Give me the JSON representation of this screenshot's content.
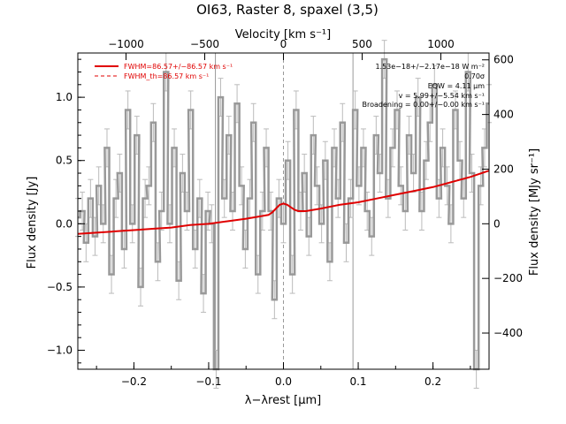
{
  "chart_data": {
    "type": "line",
    "title": "OI63, Raster 8, spaxel (3,5)",
    "xlabel": "λ−λrest [μm]",
    "ylabel": "Flux density [Jy]",
    "top_xlabel": "Velocity [km s⁻¹]",
    "right_ylabel": "Flux density [MJy sr⁻¹]",
    "xlim": [
      -0.275,
      0.275
    ],
    "ylim": [
      -1.15,
      1.35
    ],
    "x_ticks": [
      -0.2,
      -0.1,
      0.0,
      0.1,
      0.2
    ],
    "y_ticks": [
      -1.0,
      -0.5,
      0.0,
      0.5,
      1.0
    ],
    "top_ticks": [
      -1000,
      -500,
      0,
      500,
      1000
    ],
    "right_ticks": [
      -400,
      -200,
      0,
      200,
      400,
      600
    ],
    "x_tick_labels": [
      "−0.2",
      "−0.1",
      "0.0",
      "0.1",
      "0.2"
    ],
    "y_tick_labels": [
      "−1.0",
      "−0.5",
      "0.0",
      "0.5",
      "1.0"
    ],
    "top_tick_labels": [
      "−1000",
      "−500",
      "0",
      "500",
      "1000"
    ],
    "right_tick_labels": [
      "−400",
      "−200",
      "0",
      "200",
      "400",
      "600"
    ],
    "velocity_per_um": 4750,
    "mjysr_per_jy": 463,
    "vlines": [
      -0.091,
      0.0,
      0.093
    ],
    "grid": false,
    "legend": {
      "placement": "top-left",
      "items": [
        {
          "label": "FWHM=86.57+/−86.57 km s⁻¹",
          "style": "solid",
          "color": "#e00000"
        },
        {
          "label": "FWHM_th=86.57 km s⁻¹",
          "style": "dashed",
          "color": "#e00000"
        }
      ]
    },
    "annotations": [
      "1.53e−18+/−2.17e−18 W m⁻²",
      "0.70σ",
      "EQW = 4.11 μm",
      "v = 5.99+/−5.54 km s⁻¹",
      "Broadening = 0.00+/−0.00 km s⁻¹"
    ],
    "series": [
      {
        "name": "data",
        "color": "#999999",
        "drawstyle": "steps-mid",
        "x": [
          -0.275,
          -0.269,
          -0.264,
          -0.258,
          -0.252,
          -0.247,
          -0.241,
          -0.236,
          -0.23,
          -0.224,
          -0.219,
          -0.213,
          -0.208,
          -0.202,
          -0.196,
          -0.191,
          -0.185,
          -0.18,
          -0.174,
          -0.168,
          -0.163,
          -0.157,
          -0.152,
          -0.146,
          -0.14,
          -0.135,
          -0.129,
          -0.124,
          -0.118,
          -0.112,
          -0.107,
          -0.101,
          -0.096,
          -0.09,
          -0.084,
          -0.079,
          -0.073,
          -0.068,
          -0.062,
          -0.056,
          -0.051,
          -0.045,
          -0.04,
          -0.034,
          -0.028,
          -0.023,
          -0.017,
          -0.012,
          -0.006,
          0.0,
          0.006,
          0.012,
          0.017,
          0.023,
          0.028,
          0.034,
          0.04,
          0.045,
          0.051,
          0.056,
          0.062,
          0.068,
          0.073,
          0.079,
          0.084,
          0.09,
          0.096,
          0.101,
          0.107,
          0.112,
          0.118,
          0.124,
          0.129,
          0.135,
          0.14,
          0.146,
          0.152,
          0.157,
          0.163,
          0.168,
          0.174,
          0.18,
          0.185,
          0.191,
          0.196,
          0.202,
          0.208,
          0.213,
          0.219,
          0.224,
          0.23,
          0.236,
          0.241,
          0.247,
          0.252,
          0.258,
          0.264,
          0.269,
          0.275
        ],
        "y": [
          0.05,
          0.1,
          -0.15,
          0.2,
          -0.1,
          0.3,
          0.0,
          0.6,
          -0.4,
          0.2,
          0.4,
          -0.2,
          0.9,
          0.0,
          0.7,
          -0.5,
          0.2,
          0.3,
          0.8,
          -0.3,
          0.1,
          1.2,
          0.0,
          0.6,
          -0.45,
          0.4,
          0.1,
          0.9,
          -0.2,
          0.2,
          -0.55,
          0.1,
          0.0,
          -1.15,
          1.0,
          0.2,
          0.7,
          0.1,
          0.95,
          0.3,
          -0.2,
          0.2,
          0.8,
          -0.4,
          0.1,
          0.6,
          0.1,
          -0.6,
          0.2,
          0.0,
          0.5,
          -0.4,
          0.9,
          0.1,
          0.4,
          -0.1,
          0.7,
          0.3,
          0.0,
          0.5,
          -0.3,
          0.6,
          0.2,
          0.8,
          -0.15,
          0.2,
          0.9,
          0.3,
          0.6,
          0.1,
          -0.1,
          0.7,
          0.4,
          1.3,
          0.2,
          0.6,
          0.9,
          0.3,
          0.1,
          0.7,
          0.4,
          1.0,
          0.1,
          0.5,
          0.8,
          1.1,
          0.2,
          0.6,
          0.3,
          0.0,
          0.9,
          0.5,
          0.2,
          1.2,
          0.4,
          -1.15,
          0.3,
          0.6,
          0.95
        ],
        "yerr": 0.15
      },
      {
        "name": "fit",
        "color": "#e00000",
        "drawstyle": "line",
        "x": [
          -0.275,
          -0.25,
          -0.225,
          -0.2,
          -0.175,
          -0.15,
          -0.125,
          -0.1,
          -0.075,
          -0.05,
          -0.03,
          -0.02,
          -0.015,
          -0.01,
          -0.005,
          0.0,
          0.005,
          0.01,
          0.015,
          0.02,
          0.03,
          0.05,
          0.075,
          0.1,
          0.125,
          0.15,
          0.175,
          0.2,
          0.225,
          0.25,
          0.275
        ],
        "y": [
          -0.08,
          -0.07,
          -0.06,
          -0.05,
          -0.04,
          -0.03,
          -0.01,
          0.0,
          0.02,
          0.04,
          0.06,
          0.07,
          0.09,
          0.12,
          0.15,
          0.16,
          0.15,
          0.13,
          0.11,
          0.1,
          0.1,
          0.12,
          0.15,
          0.17,
          0.2,
          0.23,
          0.26,
          0.29,
          0.33,
          0.37,
          0.42
        ]
      }
    ]
  }
}
